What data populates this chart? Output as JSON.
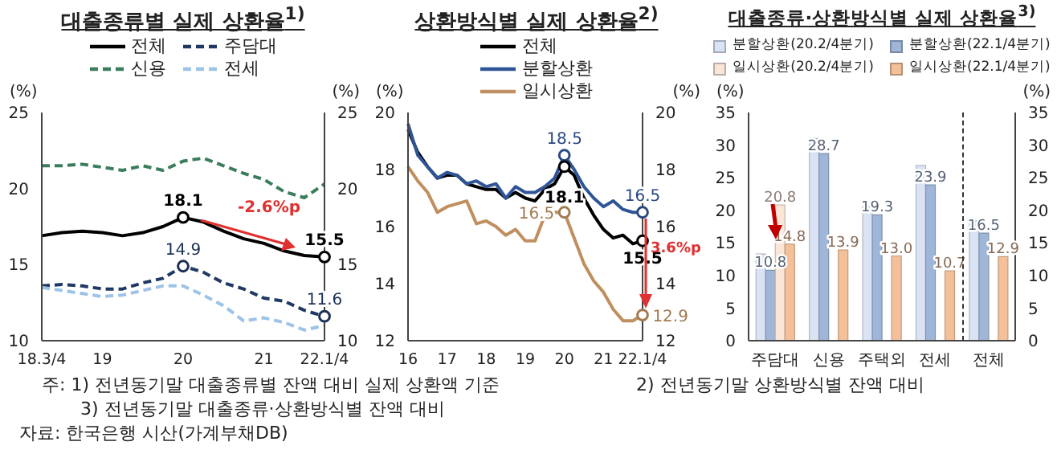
{
  "chart_data": [
    {
      "type": "line",
      "title": "대출종류별 실제 상환율$^{1)}$",
      "ylabel": "(%)",
      "y2label": "(%)",
      "legend": "top",
      "categories": [
        "18.3/4",
        null,
        null,
        "19",
        null,
        null,
        null,
        "20",
        null,
        null,
        null,
        "21",
        null,
        null,
        "22.1/4"
      ],
      "series": [
        {
          "name": "전체",
          "color": "#000000",
          "line_style": "solid",
          "values": [
            16.9,
            17.1,
            17.2,
            17.1,
            16.9,
            17.1,
            17.5,
            18.1,
            17.8,
            17.2,
            16.7,
            16.4,
            15.9,
            15.6,
            15.5
          ]
        },
        {
          "name": "주담대",
          "color": "#1f3864",
          "line_style": "dashed",
          "values": [
            13.6,
            13.7,
            13.6,
            13.4,
            13.4,
            13.8,
            14.1,
            14.9,
            14.5,
            13.8,
            13.4,
            12.8,
            12.6,
            12.0,
            11.6
          ]
        },
        {
          "name": "신용",
          "color": "#3a7d5c",
          "line_style": "dashed",
          "values": [
            21.5,
            21.5,
            21.6,
            21.4,
            21.2,
            21.5,
            21.2,
            21.8,
            22.0,
            21.5,
            21.0,
            20.6,
            19.8,
            19.4,
            20.3
          ]
        },
        {
          "name": "전세",
          "color": "#9dc3e6",
          "line_style": "dashed",
          "values": [
            13.5,
            13.3,
            13.1,
            12.9,
            13.0,
            13.3,
            13.6,
            13.6,
            13.0,
            12.3,
            11.3,
            11.5,
            11.2,
            10.7,
            11.0
          ]
        }
      ],
      "ylim": [
        10,
        25
      ],
      "yticks": [
        10,
        15,
        20,
        25
      ],
      "y2lim": [
        10,
        25
      ],
      "y2ticks": [
        10,
        15,
        20,
        25
      ],
      "annotations": [
        {
          "text": "18.1",
          "x": "20",
          "y": 18.1
        },
        {
          "text": "15.5",
          "x": "22.1/4",
          "y": 15.5
        },
        {
          "text": "14.9",
          "x": "20",
          "y": 14.9
        },
        {
          "text": "11.6",
          "x": "22.1/4",
          "y": 11.6
        },
        "-2.6%p"
      ]
    },
    {
      "type": "line",
      "title": "상환방식별 실제 상환율$^{2)}$",
      "ylabel": "(%)",
      "y2label": "(%)",
      "legend": "top",
      "categories": [
        "16",
        null,
        null,
        null,
        "17",
        null,
        null,
        null,
        "18",
        null,
        null,
        null,
        "19",
        null,
        null,
        null,
        "20",
        null,
        null,
        null,
        "21",
        null,
        null,
        null,
        "22.1/4"
      ],
      "series": [
        {
          "name": "전체",
          "color": "#000000",
          "line_style": "solid",
          "values": [
            19.4,
            18.6,
            18.1,
            17.7,
            17.8,
            17.8,
            17.5,
            17.4,
            17.3,
            17.3,
            17.0,
            17.2,
            17.0,
            16.9,
            17.3,
            17.5,
            18.1,
            17.8,
            17.0,
            16.4,
            15.9,
            15.6,
            15.7,
            15.4,
            15.5
          ]
        },
        {
          "name": "분할상환",
          "color": "#2f5597",
          "line_style": "solid",
          "values": [
            19.6,
            18.5,
            18.1,
            17.7,
            17.9,
            17.8,
            17.5,
            17.6,
            17.4,
            17.5,
            17.0,
            17.4,
            17.2,
            17.2,
            17.4,
            17.7,
            18.5,
            18.0,
            17.4,
            17.0,
            16.7,
            16.9,
            16.6,
            16.5,
            16.5
          ]
        },
        {
          "name": "일시상환",
          "color": "#bf8f5f",
          "line_style": "solid",
          "values": [
            18.1,
            17.6,
            17.2,
            16.5,
            16.7,
            16.8,
            16.9,
            16.1,
            16.2,
            16.0,
            15.7,
            15.9,
            15.5,
            15.5,
            16.4,
            16.5,
            16.5,
            15.6,
            14.7,
            14.1,
            13.7,
            13.1,
            12.7,
            12.7,
            12.9
          ]
        }
      ],
      "ylim": [
        12,
        20
      ],
      "yticks": [
        12,
        14,
        16,
        18,
        20
      ],
      "y2lim": [
        12,
        20
      ],
      "y2ticks": [
        12,
        14,
        16,
        18,
        20
      ],
      "annotations": [
        {
          "text": "18.5",
          "x": "20",
          "y": 18.5
        },
        {
          "text": "18.1",
          "x": "20",
          "y": 18.1
        },
        {
          "text": "16.5",
          "x": "22.1/4",
          "y": 16.5
        },
        {
          "text": "15.5",
          "x": "22.1/4",
          "y": 15.5
        },
        {
          "text": "16.5",
          "x": "20",
          "y": 16.5
        },
        {
          "text": "12.9",
          "x": "22.1/4",
          "y": 12.9
        },
        "3.6%p"
      ]
    },
    {
      "type": "bar",
      "title": "대출종류·상환방식별 실제 상환율$^{3)}$",
      "ylabel": "(%)",
      "y2label": "(%)",
      "legend": "top",
      "categories": [
        "주담대",
        "신용",
        "주택외",
        "전세",
        "전체"
      ],
      "series": [
        {
          "name": "분할상환(20.2/4분기)",
          "color": "#dae3f3",
          "values": [
            13.3,
            31.0,
            20.6,
            26.9,
            18.4
          ]
        },
        {
          "name": "분할상환(22.1/4분기)",
          "color": "#9fb6d9",
          "values": [
            10.8,
            28.7,
            19.3,
            23.9,
            16.5
          ],
          "value_labels": [
            "10.8",
            "28.7",
            "19.3",
            "23.9",
            "16.5"
          ]
        },
        {
          "name": "일시상환(20.2/4분기)",
          "color": "#fbe5d6",
          "values": [
            20.8,
            null,
            null,
            null,
            null
          ],
          "value_labels": [
            "20.8",
            null,
            null,
            null,
            null
          ]
        },
        {
          "name": "일시상환(22.1/4분기)",
          "color": "#f4c09a",
          "values": [
            14.8,
            13.9,
            13.0,
            10.7,
            12.9
          ],
          "value_labels": [
            "14.8",
            "13.9",
            "13.0",
            "10.7",
            "12.9"
          ]
        }
      ],
      "ylim": [
        0,
        35
      ],
      "yticks": [
        0,
        5,
        10,
        15,
        20,
        25,
        30,
        35
      ],
      "y2lim": [
        0,
        35
      ],
      "y2ticks": [
        0,
        5,
        10,
        15,
        20,
        25,
        30,
        35
      ],
      "annotations": [
        "주: 1) 전년동기말 대출종류별 잔액 대비 실제 상환액 기준",
        "2) 전년동기말 상환방식별 잔액 대비",
        "3) 전년동기말 대출종류·상환방식별 잔액 대비",
        "자료: 한국은행 시산(가계부채DB)"
      ]
    }
  ]
}
